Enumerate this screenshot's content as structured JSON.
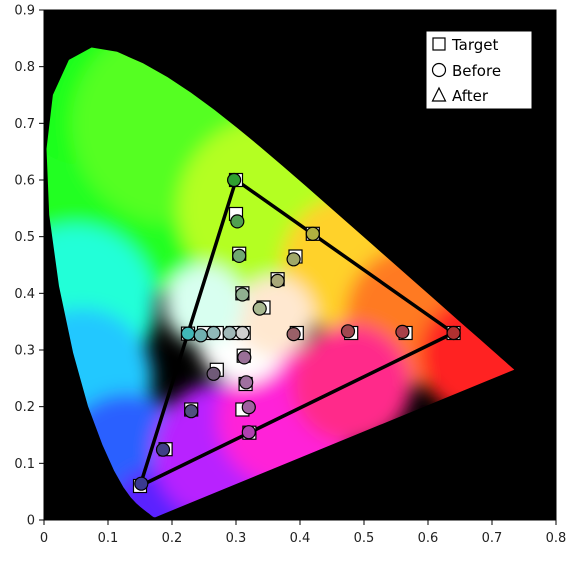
{
  "chart_data": {
    "type": "scatter",
    "title": "",
    "xlabel": "",
    "ylabel": "",
    "xlim": [
      0,
      0.8
    ],
    "ylim": [
      0,
      0.9
    ],
    "x_ticks": [
      "0",
      "0.1",
      "0.2",
      "0.3",
      "0.4",
      "0.5",
      "0.6",
      "0.7",
      "0.8"
    ],
    "y_ticks": [
      "0",
      "0.1",
      "0.2",
      "0.3",
      "0.4",
      "0.5",
      "0.6",
      "0.7",
      "0.8",
      "0.9"
    ],
    "background": "#000000",
    "legend_position": "top-right",
    "legend": [
      {
        "label": "Target",
        "marker": "square"
      },
      {
        "label": "Before",
        "marker": "circle"
      },
      {
        "label": "After",
        "marker": "triangle"
      }
    ],
    "gamut_triangle": [
      [
        0.64,
        0.33
      ],
      [
        0.3,
        0.6
      ],
      [
        0.15,
        0.06
      ]
    ],
    "series": [
      {
        "name": "Target",
        "marker": "square",
        "points": [
          [
            0.64,
            0.33
          ],
          [
            0.3,
            0.6
          ],
          [
            0.15,
            0.06
          ],
          [
            0.42,
            0.505
          ],
          [
            0.225,
            0.329
          ],
          [
            0.321,
            0.154
          ],
          [
            0.3,
            0.54
          ],
          [
            0.305,
            0.47
          ],
          [
            0.31,
            0.4
          ],
          [
            0.343,
            0.375
          ],
          [
            0.393,
            0.465
          ],
          [
            0.365,
            0.425
          ],
          [
            0.395,
            0.33
          ],
          [
            0.48,
            0.33
          ],
          [
            0.565,
            0.33
          ],
          [
            0.312,
            0.33
          ],
          [
            0.295,
            0.33
          ],
          [
            0.27,
            0.33
          ],
          [
            0.25,
            0.33
          ],
          [
            0.312,
            0.29
          ],
          [
            0.27,
            0.265
          ],
          [
            0.315,
            0.24
          ],
          [
            0.31,
            0.195
          ],
          [
            0.23,
            0.195
          ],
          [
            0.19,
            0.125
          ]
        ]
      },
      {
        "name": "Before",
        "marker": "circle",
        "points": [
          {
            "x": 0.64,
            "y": 0.33,
            "color": "#b03030"
          },
          {
            "x": 0.297,
            "y": 0.6,
            "color": "#30a030"
          },
          {
            "x": 0.152,
            "y": 0.064,
            "color": "#3a3a90"
          },
          {
            "x": 0.42,
            "y": 0.505,
            "color": "#b0b040"
          },
          {
            "x": 0.225,
            "y": 0.329,
            "color": "#40b8b8"
          },
          {
            "x": 0.32,
            "y": 0.155,
            "color": "#b040b0"
          },
          {
            "x": 0.302,
            "y": 0.527,
            "color": "#50a050"
          },
          {
            "x": 0.305,
            "y": 0.466,
            "color": "#70a870"
          },
          {
            "x": 0.31,
            "y": 0.398,
            "color": "#90b090"
          },
          {
            "x": 0.337,
            "y": 0.373,
            "color": "#a8b890"
          },
          {
            "x": 0.39,
            "y": 0.46,
            "color": "#a0a868"
          },
          {
            "x": 0.365,
            "y": 0.422,
            "color": "#a8a878"
          },
          {
            "x": 0.39,
            "y": 0.328,
            "color": "#9a6068"
          },
          {
            "x": 0.475,
            "y": 0.333,
            "color": "#a04850"
          },
          {
            "x": 0.56,
            "y": 0.332,
            "color": "#a84048"
          },
          {
            "x": 0.31,
            "y": 0.33,
            "color": "#d0d0d0"
          },
          {
            "x": 0.29,
            "y": 0.33,
            "color": "#a0b8b8"
          },
          {
            "x": 0.265,
            "y": 0.33,
            "color": "#90b8b8"
          },
          {
            "x": 0.245,
            "y": 0.326,
            "color": "#70b0b0"
          },
          {
            "x": 0.313,
            "y": 0.287,
            "color": "#9a7098"
          },
          {
            "x": 0.265,
            "y": 0.258,
            "color": "#705a78"
          },
          {
            "x": 0.316,
            "y": 0.243,
            "color": "#a070a0"
          },
          {
            "x": 0.32,
            "y": 0.199,
            "color": "#a060a0"
          },
          {
            "x": 0.23,
            "y": 0.192,
            "color": "#505080"
          },
          {
            "x": 0.186,
            "y": 0.124,
            "color": "#404088"
          }
        ]
      }
    ],
    "spectral_locus": [
      [
        0.1741,
        0.005
      ],
      [
        0.174,
        0.005
      ],
      [
        0.1738,
        0.0049
      ],
      [
        0.1736,
        0.0049
      ],
      [
        0.1733,
        0.0048
      ],
      [
        0.173,
        0.0048
      ],
      [
        0.1726,
        0.0048
      ],
      [
        0.1721,
        0.0048
      ],
      [
        0.1714,
        0.0051
      ],
      [
        0.1703,
        0.0058
      ],
      [
        0.1689,
        0.0069
      ],
      [
        0.1669,
        0.0086
      ],
      [
        0.1644,
        0.0109
      ],
      [
        0.1611,
        0.0138
      ],
      [
        0.1566,
        0.0177
      ],
      [
        0.151,
        0.0227
      ],
      [
        0.144,
        0.0297
      ],
      [
        0.1355,
        0.0399
      ],
      [
        0.1241,
        0.0578
      ],
      [
        0.1096,
        0.0868
      ],
      [
        0.0913,
        0.1327
      ],
      [
        0.0687,
        0.2007
      ],
      [
        0.0454,
        0.295
      ],
      [
        0.0235,
        0.4127
      ],
      [
        0.0082,
        0.5384
      ],
      [
        0.0039,
        0.6548
      ],
      [
        0.0139,
        0.7502
      ],
      [
        0.0389,
        0.812
      ],
      [
        0.0743,
        0.8338
      ],
      [
        0.1142,
        0.8262
      ],
      [
        0.1547,
        0.8059
      ],
      [
        0.1929,
        0.7816
      ],
      [
        0.2296,
        0.7543
      ],
      [
        0.2658,
        0.7243
      ],
      [
        0.3016,
        0.6923
      ],
      [
        0.3373,
        0.6589
      ],
      [
        0.3731,
        0.6245
      ],
      [
        0.4087,
        0.5896
      ],
      [
        0.4441,
        0.5547
      ],
      [
        0.4788,
        0.5202
      ],
      [
        0.5125,
        0.4866
      ],
      [
        0.5448,
        0.4544
      ],
      [
        0.5752,
        0.4242
      ],
      [
        0.6029,
        0.3965
      ],
      [
        0.627,
        0.3725
      ],
      [
        0.6482,
        0.3514
      ],
      [
        0.6658,
        0.334
      ],
      [
        0.6801,
        0.3197
      ],
      [
        0.6915,
        0.3083
      ],
      [
        0.7006,
        0.2993
      ],
      [
        0.7079,
        0.292
      ],
      [
        0.714,
        0.2859
      ],
      [
        0.719,
        0.2809
      ],
      [
        0.723,
        0.277
      ],
      [
        0.726,
        0.274
      ],
      [
        0.7283,
        0.2717
      ],
      [
        0.73,
        0.27
      ],
      [
        0.7311,
        0.2689
      ],
      [
        0.732,
        0.268
      ],
      [
        0.7327,
        0.2673
      ],
      [
        0.7334,
        0.2666
      ],
      [
        0.734,
        0.266
      ],
      [
        0.7344,
        0.2656
      ],
      [
        0.7346,
        0.2654
      ],
      [
        0.7347,
        0.2653
      ]
    ]
  }
}
